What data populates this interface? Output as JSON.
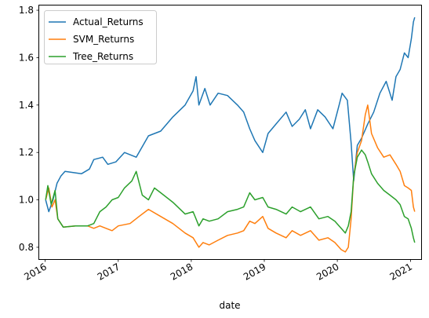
{
  "chart_data": {
    "type": "line",
    "title": "",
    "xlabel": "date",
    "ylabel": "",
    "xlim": [
      "2015-12-03",
      "2021-02-23"
    ],
    "ylim": [
      0.75,
      1.82
    ],
    "x_ticks": [
      "2016",
      "2017",
      "2018",
      "2019",
      "2020",
      "2021"
    ],
    "y_ticks": [
      "0.8",
      "1.0",
      "1.2",
      "1.4",
      "1.6",
      "1.8"
    ],
    "grid": false,
    "legend_position": "top-left",
    "series": [
      {
        "name": "Actual_Returns",
        "color": "#1f77b4",
        "points": [
          [
            "2016-01-04",
            1.0
          ],
          [
            "2016-01-20",
            0.95
          ],
          [
            "2016-02-10",
            1.0
          ],
          [
            "2016-03-01",
            1.07
          ],
          [
            "2016-03-20",
            1.1
          ],
          [
            "2016-04-10",
            1.12
          ],
          [
            "2016-07-01",
            1.11
          ],
          [
            "2016-08-10",
            1.13
          ],
          [
            "2016-09-01",
            1.17
          ],
          [
            "2016-10-15",
            1.18
          ],
          [
            "2016-11-10",
            1.15
          ],
          [
            "2016-12-20",
            1.16
          ],
          [
            "2017-02-01",
            1.2
          ],
          [
            "2017-04-01",
            1.18
          ],
          [
            "2017-06-01",
            1.27
          ],
          [
            "2017-08-01",
            1.29
          ],
          [
            "2017-10-01",
            1.35
          ],
          [
            "2017-12-01",
            1.4
          ],
          [
            "2018-01-10",
            1.46
          ],
          [
            "2018-01-25",
            1.52
          ],
          [
            "2018-02-08",
            1.4
          ],
          [
            "2018-03-10",
            1.47
          ],
          [
            "2018-04-05",
            1.4
          ],
          [
            "2018-05-15",
            1.45
          ],
          [
            "2018-07-01",
            1.44
          ],
          [
            "2018-08-20",
            1.4
          ],
          [
            "2018-09-20",
            1.37
          ],
          [
            "2018-10-20",
            1.3
          ],
          [
            "2018-11-15",
            1.25
          ],
          [
            "2018-12-24",
            1.2
          ],
          [
            "2019-01-20",
            1.28
          ],
          [
            "2019-03-01",
            1.32
          ],
          [
            "2019-04-20",
            1.37
          ],
          [
            "2019-05-20",
            1.31
          ],
          [
            "2019-06-25",
            1.34
          ],
          [
            "2019-07-25",
            1.38
          ],
          [
            "2019-08-20",
            1.3
          ],
          [
            "2019-09-25",
            1.38
          ],
          [
            "2019-11-01",
            1.35
          ],
          [
            "2019-12-10",
            1.3
          ],
          [
            "2020-01-10",
            1.4
          ],
          [
            "2020-01-25",
            1.45
          ],
          [
            "2020-02-20",
            1.42
          ],
          [
            "2020-03-10",
            1.24
          ],
          [
            "2020-03-23",
            1.08
          ],
          [
            "2020-04-10",
            1.23
          ],
          [
            "2020-05-01",
            1.26
          ],
          [
            "2020-06-01",
            1.32
          ],
          [
            "2020-07-01",
            1.37
          ],
          [
            "2020-08-01",
            1.45
          ],
          [
            "2020-09-01",
            1.5
          ],
          [
            "2020-10-01",
            1.42
          ],
          [
            "2020-10-20",
            1.52
          ],
          [
            "2020-11-10",
            1.55
          ],
          [
            "2020-12-01",
            1.62
          ],
          [
            "2020-12-20",
            1.6
          ],
          [
            "2021-01-05",
            1.68
          ],
          [
            "2021-01-15",
            1.75
          ],
          [
            "2021-01-22",
            1.77
          ]
        ]
      },
      {
        "name": "SVM_Returns",
        "color": "#ff7f0e",
        "points": [
          [
            "2016-01-04",
            1.0
          ],
          [
            "2016-01-20",
            1.05
          ],
          [
            "2016-02-05",
            0.97
          ],
          [
            "2016-02-20",
            1.0
          ],
          [
            "2016-03-05",
            0.92
          ],
          [
            "2016-04-01",
            0.885
          ],
          [
            "2016-06-01",
            0.89
          ],
          [
            "2016-08-01",
            0.89
          ],
          [
            "2016-09-01",
            0.88
          ],
          [
            "2016-10-01",
            0.89
          ],
          [
            "2016-11-01",
            0.88
          ],
          [
            "2016-12-01",
            0.87
          ],
          [
            "2017-01-01",
            0.89
          ],
          [
            "2017-03-01",
            0.9
          ],
          [
            "2017-04-15",
            0.93
          ],
          [
            "2017-06-01",
            0.96
          ],
          [
            "2017-08-01",
            0.93
          ],
          [
            "2017-10-01",
            0.9
          ],
          [
            "2017-12-01",
            0.86
          ],
          [
            "2018-01-10",
            0.84
          ],
          [
            "2018-02-08",
            0.8
          ],
          [
            "2018-03-01",
            0.82
          ],
          [
            "2018-04-01",
            0.81
          ],
          [
            "2018-05-15",
            0.83
          ],
          [
            "2018-07-01",
            0.85
          ],
          [
            "2018-08-20",
            0.86
          ],
          [
            "2018-09-20",
            0.87
          ],
          [
            "2018-10-20",
            0.91
          ],
          [
            "2018-11-15",
            0.9
          ],
          [
            "2018-12-24",
            0.93
          ],
          [
            "2019-01-20",
            0.88
          ],
          [
            "2019-03-01",
            0.86
          ],
          [
            "2019-04-20",
            0.84
          ],
          [
            "2019-05-20",
            0.87
          ],
          [
            "2019-07-01",
            0.85
          ],
          [
            "2019-08-20",
            0.87
          ],
          [
            "2019-10-01",
            0.83
          ],
          [
            "2019-11-15",
            0.84
          ],
          [
            "2019-12-20",
            0.82
          ],
          [
            "2020-01-20",
            0.79
          ],
          [
            "2020-02-10",
            0.78
          ],
          [
            "2020-02-25",
            0.8
          ],
          [
            "2020-03-10",
            0.92
          ],
          [
            "2020-03-23",
            1.1
          ],
          [
            "2020-04-10",
            1.2
          ],
          [
            "2020-05-01",
            1.25
          ],
          [
            "2020-05-20",
            1.36
          ],
          [
            "2020-06-01",
            1.4
          ],
          [
            "2020-06-20",
            1.28
          ],
          [
            "2020-07-20",
            1.22
          ],
          [
            "2020-08-20",
            1.18
          ],
          [
            "2020-09-20",
            1.19
          ],
          [
            "2020-10-20",
            1.15
          ],
          [
            "2020-11-10",
            1.12
          ],
          [
            "2020-12-01",
            1.06
          ],
          [
            "2020-12-20",
            1.05
          ],
          [
            "2021-01-05",
            1.04
          ],
          [
            "2021-01-15",
            0.97
          ],
          [
            "2021-01-22",
            0.95
          ]
        ]
      },
      {
        "name": "Tree_Returns",
        "color": "#2ca02c",
        "points": [
          [
            "2016-01-04",
            1.0
          ],
          [
            "2016-01-15",
            1.06
          ],
          [
            "2016-02-01",
            0.98
          ],
          [
            "2016-02-20",
            1.04
          ],
          [
            "2016-03-05",
            0.92
          ],
          [
            "2016-04-01",
            0.885
          ],
          [
            "2016-06-01",
            0.89
          ],
          [
            "2016-08-01",
            0.89
          ],
          [
            "2016-09-01",
            0.9
          ],
          [
            "2016-10-01",
            0.95
          ],
          [
            "2016-11-01",
            0.97
          ],
          [
            "2016-12-01",
            1.0
          ],
          [
            "2017-01-01",
            1.01
          ],
          [
            "2017-02-01",
            1.05
          ],
          [
            "2017-03-10",
            1.08
          ],
          [
            "2017-04-01",
            1.12
          ],
          [
            "2017-05-01",
            1.02
          ],
          [
            "2017-06-01",
            1.0
          ],
          [
            "2017-07-01",
            1.05
          ],
          [
            "2017-08-01",
            1.03
          ],
          [
            "2017-10-01",
            0.99
          ],
          [
            "2017-12-01",
            0.94
          ],
          [
            "2018-01-10",
            0.95
          ],
          [
            "2018-02-08",
            0.89
          ],
          [
            "2018-03-01",
            0.92
          ],
          [
            "2018-04-01",
            0.91
          ],
          [
            "2018-05-15",
            0.92
          ],
          [
            "2018-07-01",
            0.95
          ],
          [
            "2018-08-20",
            0.96
          ],
          [
            "2018-09-20",
            0.97
          ],
          [
            "2018-10-20",
            1.03
          ],
          [
            "2018-11-15",
            1.0
          ],
          [
            "2018-12-24",
            1.01
          ],
          [
            "2019-01-20",
            0.97
          ],
          [
            "2019-03-01",
            0.96
          ],
          [
            "2019-04-20",
            0.94
          ],
          [
            "2019-05-20",
            0.97
          ],
          [
            "2019-07-01",
            0.95
          ],
          [
            "2019-08-20",
            0.97
          ],
          [
            "2019-10-01",
            0.92
          ],
          [
            "2019-11-15",
            0.93
          ],
          [
            "2019-12-20",
            0.91
          ],
          [
            "2020-01-20",
            0.88
          ],
          [
            "2020-02-10",
            0.86
          ],
          [
            "2020-02-25",
            0.89
          ],
          [
            "2020-03-10",
            0.95
          ],
          [
            "2020-03-23",
            1.1
          ],
          [
            "2020-04-10",
            1.18
          ],
          [
            "2020-05-01",
            1.21
          ],
          [
            "2020-05-20",
            1.19
          ],
          [
            "2020-06-01",
            1.16
          ],
          [
            "2020-06-20",
            1.11
          ],
          [
            "2020-07-20",
            1.07
          ],
          [
            "2020-08-20",
            1.04
          ],
          [
            "2020-09-20",
            1.02
          ],
          [
            "2020-10-20",
            1.0
          ],
          [
            "2020-11-10",
            0.98
          ],
          [
            "2020-12-01",
            0.93
          ],
          [
            "2020-12-20",
            0.92
          ],
          [
            "2021-01-05",
            0.88
          ],
          [
            "2021-01-15",
            0.84
          ],
          [
            "2021-01-22",
            0.82
          ]
        ]
      }
    ]
  }
}
